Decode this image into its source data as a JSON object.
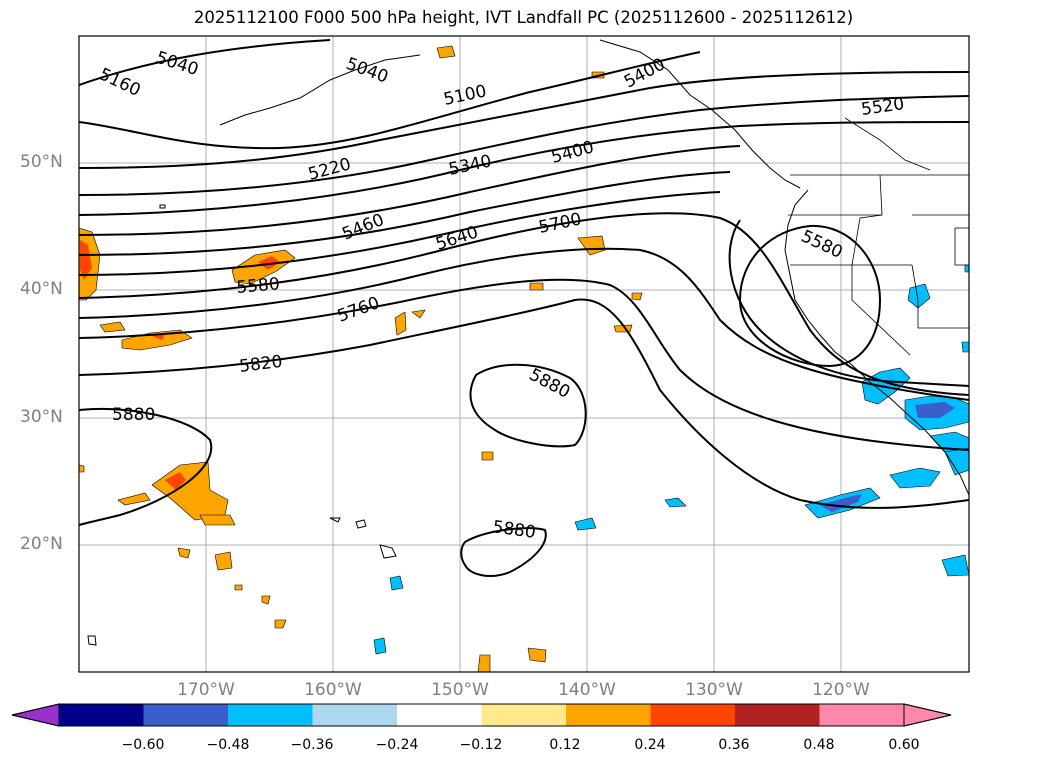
{
  "title": "2025112100 F000 500 hPa height, IVT Landfall PC (2025112600 - 2025112612)",
  "latitude_labels": [
    "50°N",
    "40°N",
    "30°N",
    "20°N"
  ],
  "longitude_labels": [
    "170°W",
    "160°W",
    "150°W",
    "140°W",
    "130°W",
    "120°W"
  ],
  "contour_labels": [
    "5040",
    "5160",
    "5040",
    "5100",
    "5400",
    "5520",
    "5220",
    "5340",
    "5400",
    "5460",
    "5640",
    "5700",
    "5580",
    "5580",
    "5760",
    "5820",
    "5880",
    "5880",
    "5880"
  ],
  "colorbar": {
    "ticks": [
      "−0.60",
      "−0.48",
      "−0.36",
      "−0.24",
      "−0.12",
      "0.12",
      "0.24",
      "0.36",
      "0.48",
      "0.60"
    ],
    "colors": [
      "#9932cc",
      "#00008b",
      "#3a5fcd",
      "#00bfff",
      "#add8f0",
      "#ffffff",
      "#ffe98a",
      "#ffa500",
      "#ff4500",
      "#b22222",
      "#ff88aa",
      "#ff88aa"
    ]
  },
  "colors": {
    "negative_light": "#00bfff",
    "negative_dark": "#3a5fcd",
    "positive_light": "#ffa500",
    "positive_dark": "#ff4500",
    "contour": "#000000",
    "grid": "#b0b0b0",
    "axis_label": "#808080"
  }
}
